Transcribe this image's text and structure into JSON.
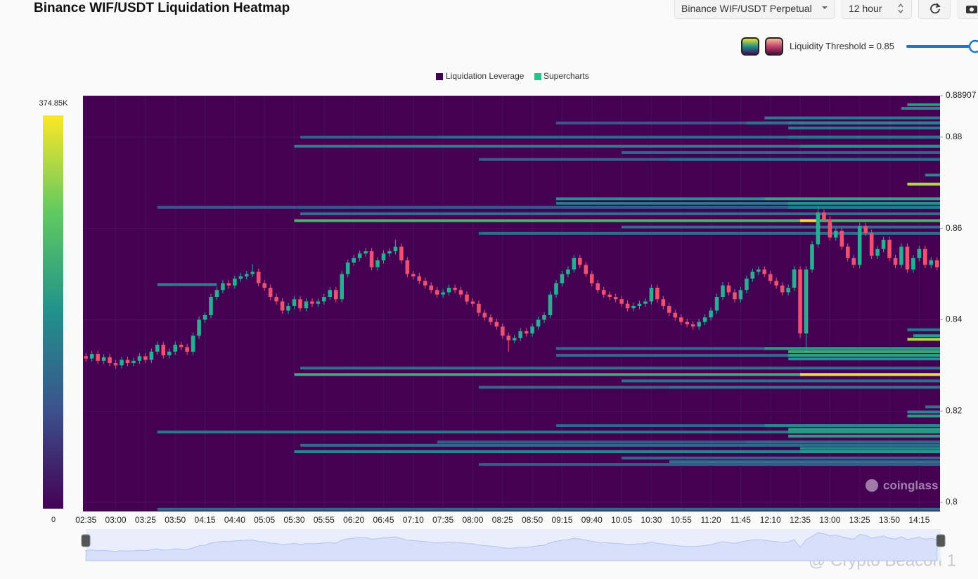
{
  "header": {
    "title": "Binance WIF/USDT Liquidation Heatmap",
    "exchange_select": "Binance WIF/USDT Perpetual",
    "interval_select": "12 hour",
    "threshold_label": "Liquidity Threshold = 0.85"
  },
  "overlay": "@ Crypto Beacon 1",
  "chart_data": {
    "type": "heatmap",
    "legend": [
      {
        "name": "Liquidation Leverage",
        "color": "#440154"
      },
      {
        "name": "Supercharts",
        "color": "#22c48a"
      }
    ],
    "watermark": "coinglass",
    "up_color": "#26b08f",
    "down_color": "#f0506e",
    "ylim": [
      0.798,
      0.88907
    ],
    "yticks": [
      0.8,
      0.82,
      0.84,
      0.86,
      0.88,
      0.88907
    ],
    "grid": true,
    "colormap": [
      "#440154",
      "#3b528b",
      "#21918c",
      "#5ec962",
      "#fde725"
    ],
    "clim": [
      0,
      374850
    ],
    "cticks": [
      0,
      {
        "value": 374850,
        "label": "374.85K"
      }
    ],
    "categories": [
      "02:35",
      null,
      null,
      null,
      null,
      "03:00",
      null,
      null,
      null,
      null,
      "03:25",
      null,
      null,
      null,
      null,
      "03:50",
      null,
      null,
      null,
      null,
      "04:15",
      null,
      null,
      null,
      null,
      "04:40",
      null,
      null,
      null,
      null,
      "05:05",
      null,
      null,
      null,
      null,
      "05:30",
      null,
      null,
      null,
      null,
      "05:55",
      null,
      null,
      null,
      null,
      "06:20",
      null,
      null,
      null,
      null,
      "06:45",
      null,
      null,
      null,
      null,
      "07:10",
      null,
      null,
      null,
      null,
      "07:35",
      null,
      null,
      null,
      null,
      "08:00",
      null,
      null,
      null,
      null,
      "08:25",
      null,
      null,
      null,
      null,
      "08:50",
      null,
      null,
      null,
      null,
      "09:15",
      null,
      null,
      null,
      null,
      "09:40",
      null,
      null,
      null,
      null,
      "10:05",
      null,
      null,
      null,
      null,
      "10:30",
      null,
      null,
      null,
      null,
      "10:55",
      null,
      null,
      null,
      null,
      "11:20",
      null,
      null,
      null,
      null,
      "11:45",
      null,
      null,
      null,
      null,
      "12:10",
      null,
      null,
      null,
      null,
      "12:35",
      null,
      null,
      null,
      null,
      "13:00",
      null,
      null,
      null,
      null,
      "13:25",
      null,
      null,
      null,
      null,
      "13:50",
      null,
      null,
      null,
      null,
      "14:15",
      null,
      null,
      null
    ],
    "candles": [
      [
        0.832,
        0.8327,
        0.8308,
        0.8315
      ],
      [
        0.8315,
        0.8332,
        0.8308,
        0.8325
      ],
      [
        0.8325,
        0.8332,
        0.8303,
        0.831
      ],
      [
        0.831,
        0.8325,
        0.8303,
        0.8318
      ],
      [
        0.8318,
        0.8325,
        0.8298,
        0.8305
      ],
      [
        0.8305,
        0.8312,
        0.8293,
        0.83
      ],
      [
        0.83,
        0.8319,
        0.8293,
        0.8312
      ],
      [
        0.8312,
        0.8319,
        0.8298,
        0.8305
      ],
      [
        0.8305,
        0.8317,
        0.8298,
        0.831
      ],
      [
        0.831,
        0.8327,
        0.8303,
        0.832
      ],
      [
        0.832,
        0.8327,
        0.8305,
        0.8312
      ],
      [
        0.8312,
        0.8337,
        0.8305,
        0.833
      ],
      [
        0.833,
        0.8352,
        0.8323,
        0.8345
      ],
      [
        0.8345,
        0.8352,
        0.8315,
        0.8322
      ],
      [
        0.8322,
        0.8337,
        0.8315,
        0.833
      ],
      [
        0.833,
        0.8352,
        0.8323,
        0.8345
      ],
      [
        0.8345,
        0.8352,
        0.8333,
        0.834
      ],
      [
        0.834,
        0.8347,
        0.8323,
        0.833
      ],
      [
        0.833,
        0.8372,
        0.8323,
        0.8365
      ],
      [
        0.8365,
        0.8407,
        0.8358,
        0.84
      ],
      [
        0.84,
        0.8417,
        0.8393,
        0.841
      ],
      [
        0.841,
        0.8457,
        0.8403,
        0.845
      ],
      [
        0.845,
        0.8472,
        0.8443,
        0.8465
      ],
      [
        0.8465,
        0.8487,
        0.8458,
        0.848
      ],
      [
        0.848,
        0.8487,
        0.8468,
        0.8475
      ],
      [
        0.8475,
        0.8497,
        0.8468,
        0.849
      ],
      [
        0.849,
        0.8502,
        0.8483,
        0.8495
      ],
      [
        0.8495,
        0.8507,
        0.8488,
        0.85
      ],
      [
        0.85,
        0.8522,
        0.8493,
        0.8505
      ],
      [
        0.8505,
        0.8512,
        0.8473,
        0.848
      ],
      [
        0.848,
        0.8487,
        0.8463,
        0.847
      ],
      [
        0.847,
        0.8477,
        0.8443,
        0.845
      ],
      [
        0.845,
        0.8457,
        0.8433,
        0.844
      ],
      [
        0.844,
        0.8447,
        0.8413,
        0.842
      ],
      [
        0.842,
        0.8437,
        0.8413,
        0.843
      ],
      [
        0.843,
        0.8452,
        0.8423,
        0.8445
      ],
      [
        0.8445,
        0.8452,
        0.8418,
        0.8425
      ],
      [
        0.8425,
        0.8447,
        0.8418,
        0.844
      ],
      [
        0.844,
        0.8447,
        0.8428,
        0.8435
      ],
      [
        0.8435,
        0.8447,
        0.8428,
        0.844
      ],
      [
        0.844,
        0.8457,
        0.8433,
        0.845
      ],
      [
        0.845,
        0.8472,
        0.8443,
        0.8465
      ],
      [
        0.8465,
        0.8472,
        0.8438,
        0.8445
      ],
      [
        0.8445,
        0.8507,
        0.8438,
        0.85
      ],
      [
        0.85,
        0.8532,
        0.8493,
        0.8525
      ],
      [
        0.8525,
        0.8542,
        0.8518,
        0.8535
      ],
      [
        0.8535,
        0.8552,
        0.8528,
        0.8545
      ],
      [
        0.8545,
        0.8557,
        0.8538,
        0.855
      ],
      [
        0.855,
        0.8557,
        0.8508,
        0.8515
      ],
      [
        0.8515,
        0.8537,
        0.8508,
        0.853
      ],
      [
        0.853,
        0.8552,
        0.8523,
        0.8545
      ],
      [
        0.8545,
        0.8557,
        0.8538,
        0.855
      ],
      [
        0.855,
        0.8575,
        0.8543,
        0.856
      ],
      [
        0.856,
        0.8567,
        0.8523,
        0.853
      ],
      [
        0.853,
        0.8537,
        0.8493,
        0.85
      ],
      [
        0.85,
        0.8507,
        0.8488,
        0.8495
      ],
      [
        0.8495,
        0.8502,
        0.8478,
        0.8485
      ],
      [
        0.8485,
        0.8492,
        0.8468,
        0.8475
      ],
      [
        0.8475,
        0.8482,
        0.8458,
        0.8465
      ],
      [
        0.8465,
        0.8472,
        0.8448,
        0.8455
      ],
      [
        0.8455,
        0.8467,
        0.8448,
        0.846
      ],
      [
        0.846,
        0.8477,
        0.8453,
        0.847
      ],
      [
        0.847,
        0.8477,
        0.8458,
        0.8465
      ],
      [
        0.8465,
        0.8472,
        0.8448,
        0.8455
      ],
      [
        0.8455,
        0.8462,
        0.8433,
        0.844
      ],
      [
        0.844,
        0.8447,
        0.8428,
        0.8435
      ],
      [
        0.8435,
        0.8442,
        0.8408,
        0.8415
      ],
      [
        0.8415,
        0.8422,
        0.8398,
        0.8405
      ],
      [
        0.8405,
        0.8412,
        0.8388,
        0.8395
      ],
      [
        0.8395,
        0.8402,
        0.8378,
        0.8385
      ],
      [
        0.8385,
        0.8392,
        0.8358,
        0.8365
      ],
      [
        0.8365,
        0.8372,
        0.833,
        0.8355
      ],
      [
        0.8355,
        0.8367,
        0.8348,
        0.836
      ],
      [
        0.836,
        0.8382,
        0.8353,
        0.8375
      ],
      [
        0.8375,
        0.8382,
        0.8363,
        0.837
      ],
      [
        0.837,
        0.8392,
        0.8363,
        0.8385
      ],
      [
        0.8385,
        0.8407,
        0.8378,
        0.84
      ],
      [
        0.84,
        0.8417,
        0.8393,
        0.841
      ],
      [
        0.841,
        0.8462,
        0.8403,
        0.8455
      ],
      [
        0.8455,
        0.8487,
        0.8448,
        0.848
      ],
      [
        0.848,
        0.8507,
        0.8473,
        0.85
      ],
      [
        0.85,
        0.8517,
        0.8493,
        0.851
      ],
      [
        0.851,
        0.8542,
        0.8503,
        0.8535
      ],
      [
        0.8535,
        0.8542,
        0.8513,
        0.852
      ],
      [
        0.852,
        0.8527,
        0.8493,
        0.85
      ],
      [
        0.85,
        0.8507,
        0.8473,
        0.848
      ],
      [
        0.848,
        0.8487,
        0.8458,
        0.8465
      ],
      [
        0.8465,
        0.8472,
        0.8448,
        0.8455
      ],
      [
        0.8455,
        0.8462,
        0.8443,
        0.845
      ],
      [
        0.845,
        0.8457,
        0.8438,
        0.8445
      ],
      [
        0.8445,
        0.8452,
        0.8428,
        0.8435
      ],
      [
        0.8435,
        0.8442,
        0.8418,
        0.8425
      ],
      [
        0.8425,
        0.8437,
        0.8418,
        0.843
      ],
      [
        0.843,
        0.8442,
        0.8423,
        0.8435
      ],
      [
        0.8435,
        0.8447,
        0.8428,
        0.844
      ],
      [
        0.844,
        0.8477,
        0.8433,
        0.847
      ],
      [
        0.847,
        0.8477,
        0.8438,
        0.8445
      ],
      [
        0.8445,
        0.8452,
        0.8423,
        0.843
      ],
      [
        0.843,
        0.8437,
        0.8408,
        0.8415
      ],
      [
        0.8415,
        0.8422,
        0.8398,
        0.8405
      ],
      [
        0.8405,
        0.8412,
        0.8388,
        0.8395
      ],
      [
        0.8395,
        0.8402,
        0.8383,
        0.839
      ],
      [
        0.839,
        0.8397,
        0.8378,
        0.8385
      ],
      [
        0.8385,
        0.8402,
        0.8378,
        0.8395
      ],
      [
        0.8395,
        0.8412,
        0.8388,
        0.8405
      ],
      [
        0.8405,
        0.8427,
        0.8398,
        0.842
      ],
      [
        0.842,
        0.8457,
        0.8413,
        0.845
      ],
      [
        0.845,
        0.8482,
        0.8443,
        0.8475
      ],
      [
        0.8475,
        0.8482,
        0.8453,
        0.846
      ],
      [
        0.846,
        0.8467,
        0.8438,
        0.8445
      ],
      [
        0.8445,
        0.8472,
        0.8438,
        0.8465
      ],
      [
        0.8465,
        0.8497,
        0.8458,
        0.849
      ],
      [
        0.849,
        0.8512,
        0.8483,
        0.8505
      ],
      [
        0.8505,
        0.8517,
        0.8498,
        0.851
      ],
      [
        0.851,
        0.8517,
        0.8493,
        0.85
      ],
      [
        0.85,
        0.8507,
        0.8478,
        0.8485
      ],
      [
        0.8485,
        0.8492,
        0.8468,
        0.8475
      ],
      [
        0.8475,
        0.8482,
        0.8453,
        0.846
      ],
      [
        0.846,
        0.8477,
        0.8453,
        0.847
      ],
      [
        0.847,
        0.8517,
        0.8463,
        0.851
      ],
      [
        0.851,
        0.8517,
        0.836,
        0.837
      ],
      [
        0.837,
        0.8517,
        0.833,
        0.851
      ],
      [
        0.851,
        0.8572,
        0.8503,
        0.8565
      ],
      [
        0.8565,
        0.8648,
        0.8558,
        0.8635
      ],
      [
        0.8635,
        0.8642,
        0.8613,
        0.862
      ],
      [
        0.862,
        0.8627,
        0.8573,
        0.858
      ],
      [
        0.858,
        0.8602,
        0.8573,
        0.8595
      ],
      [
        0.8595,
        0.8602,
        0.8553,
        0.856
      ],
      [
        0.856,
        0.8567,
        0.8528,
        0.8535
      ],
      [
        0.8535,
        0.8542,
        0.8513,
        0.852
      ],
      [
        0.852,
        0.8612,
        0.8513,
        0.8605
      ],
      [
        0.8605,
        0.8612,
        0.8583,
        0.859
      ],
      [
        0.859,
        0.8597,
        0.8533,
        0.854
      ],
      [
        0.854,
        0.8562,
        0.8533,
        0.8555
      ],
      [
        0.8555,
        0.8582,
        0.8548,
        0.8575
      ],
      [
        0.8575,
        0.8582,
        0.8528,
        0.8535
      ],
      [
        0.8535,
        0.8542,
        0.8513,
        0.852
      ],
      [
        0.852,
        0.8567,
        0.8513,
        0.856
      ],
      [
        0.856,
        0.8567,
        0.8503,
        0.851
      ],
      [
        0.851,
        0.8542,
        0.8503,
        0.8535
      ],
      [
        0.8535,
        0.8562,
        0.8528,
        0.8555
      ],
      [
        0.8555,
        0.8562,
        0.8513,
        0.852
      ],
      [
        0.852,
        0.8537,
        0.8513,
        0.853
      ],
      [
        0.853,
        0.8537,
        0.8508,
        0.8515
      ]
    ],
    "heat": [
      {
        "price": 0.8871,
        "from": "14:05",
        "value": 200000
      },
      {
        "price": 0.8863,
        "from": "14:00",
        "value": 170000
      },
      {
        "price": 0.8842,
        "from": "12:05",
        "value": 150000
      },
      {
        "price": 0.8831,
        "from": "09:10",
        "value": 100000
      },
      {
        "price": 0.8831,
        "from": "11:50",
        "value": 140000
      },
      {
        "price": 0.8831,
        "from": "12:25",
        "value": 170000
      },
      {
        "price": 0.882,
        "from": "12:25",
        "value": 150000
      },
      {
        "price": 0.88,
        "from": "05:35",
        "value": 110000
      },
      {
        "price": 0.88,
        "from": "07:30",
        "value": 120000
      },
      {
        "price": 0.88,
        "from": "12:25",
        "value": 150000
      },
      {
        "price": 0.878,
        "from": "05:30",
        "value": 160000
      },
      {
        "price": 0.878,
        "from": "12:35",
        "value": 190000
      },
      {
        "price": 0.8766,
        "from": "10:05",
        "value": 120000
      },
      {
        "price": 0.8751,
        "from": "08:05",
        "value": 110000
      },
      {
        "price": 0.8751,
        "from": "10:45",
        "value": 130000
      },
      {
        "price": 0.8717,
        "from": "14:20",
        "value": 170000
      },
      {
        "price": 0.8697,
        "from": "14:05",
        "value": 330000
      },
      {
        "price": 0.8665,
        "from": "09:10",
        "value": 190000
      },
      {
        "price": 0.8665,
        "from": "12:05",
        "value": 220000
      },
      {
        "price": 0.8655,
        "from": "09:10",
        "value": 150000
      },
      {
        "price": 0.8655,
        "from": "12:25",
        "value": 190000
      },
      {
        "price": 0.8646,
        "from": "03:35",
        "value": 100000
      },
      {
        "price": 0.8646,
        "from": "12:25",
        "value": 150000
      },
      {
        "price": 0.8632,
        "from": "05:35",
        "value": 140000
      },
      {
        "price": 0.8617,
        "from": "05:30",
        "value": 250000
      },
      {
        "price": 0.8617,
        "from": "12:35",
        "value": 370000,
        "to": "12:50"
      },
      {
        "price": 0.8603,
        "from": "10:05",
        "value": 130000
      },
      {
        "price": 0.8589,
        "from": "08:05",
        "value": 130000
      },
      {
        "price": 0.8477,
        "from": "03:35",
        "value": 160000,
        "to": "04:25"
      },
      {
        "price": 0.8378,
        "from": "14:05",
        "value": 150000
      },
      {
        "price": 0.8365,
        "from": "14:10",
        "value": 200000
      },
      {
        "price": 0.8357,
        "from": "14:05",
        "value": 330000
      },
      {
        "price": 0.8337,
        "from": "09:10",
        "value": 130000
      },
      {
        "price": 0.8337,
        "from": "12:05",
        "value": 200000
      },
      {
        "price": 0.833,
        "from": "12:25",
        "value": 230000
      },
      {
        "price": 0.8322,
        "from": "09:10",
        "value": 130000
      },
      {
        "price": 0.8322,
        "from": "12:25",
        "value": 210000
      },
      {
        "price": 0.8314,
        "from": "12:25",
        "value": 190000
      },
      {
        "price": 0.8294,
        "from": "05:35",
        "value": 140000
      },
      {
        "price": 0.828,
        "from": "05:30",
        "value": 230000
      },
      {
        "price": 0.828,
        "from": "12:35",
        "value": 360000
      },
      {
        "price": 0.8266,
        "from": "10:05",
        "value": 140000
      },
      {
        "price": 0.8252,
        "from": "08:05",
        "value": 130000
      },
      {
        "price": 0.8252,
        "from": "10:45",
        "value": 150000
      },
      {
        "price": 0.8209,
        "from": "14:20",
        "value": 140000
      },
      {
        "price": 0.8198,
        "from": "14:05",
        "value": 170000
      },
      {
        "price": 0.8189,
        "from": "14:05",
        "value": 200000
      },
      {
        "price": 0.8168,
        "from": "09:10",
        "value": 120000
      },
      {
        "price": 0.8168,
        "from": "12:05",
        "value": 180000
      },
      {
        "price": 0.816,
        "from": "12:25",
        "value": 200000
      },
      {
        "price": 0.8154,
        "from": "03:35",
        "value": 150000
      },
      {
        "price": 0.8154,
        "from": "12:25",
        "value": 200000
      },
      {
        "price": 0.8145,
        "from": "12:25",
        "value": 200000
      },
      {
        "price": 0.8132,
        "from": "07:30",
        "value": 110000
      },
      {
        "price": 0.8132,
        "from": "11:50",
        "value": 130000
      },
      {
        "price": 0.8125,
        "from": "05:35",
        "value": 130000
      },
      {
        "price": 0.8118,
        "from": "12:35",
        "value": 180000
      },
      {
        "price": 0.8111,
        "from": "05:30",
        "value": 170000
      },
      {
        "price": 0.8111,
        "from": "12:35",
        "value": 200000
      },
      {
        "price": 0.8097,
        "from": "10:05",
        "value": 120000
      },
      {
        "price": 0.8089,
        "from": "10:45",
        "value": 140000
      },
      {
        "price": 0.8083,
        "from": "08:05",
        "value": 110000
      },
      {
        "price": 0.7985,
        "from": "03:35",
        "value": 120000
      }
    ]
  }
}
